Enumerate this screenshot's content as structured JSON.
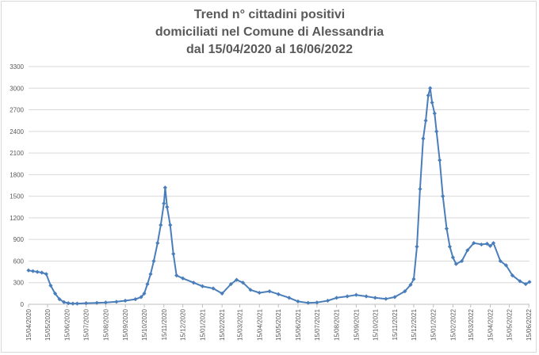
{
  "chart_data": {
    "type": "line",
    "title_lines": [
      "Trend n° cittadini positivi",
      "domiciliati nel Comune di Alessandria",
      "dal 15/04/2020 al 16/06/2022"
    ],
    "xlabel": "",
    "ylabel": "",
    "ylim": [
      0,
      3300
    ],
    "y_ticks": [
      0,
      300,
      600,
      900,
      1200,
      1500,
      1800,
      2100,
      2400,
      2700,
      3000,
      3300
    ],
    "x_tick_labels": [
      "15/04/2020",
      "15/05/2020",
      "15/06/2020",
      "15/07/2020",
      "15/08/2020",
      "15/09/2020",
      "15/10/2020",
      "15/11/2020",
      "15/12/2020",
      "15/01/2021",
      "15/02/2021",
      "15/03/2021",
      "15/04/2021",
      "15/05/2021",
      "15/06/2021",
      "15/07/2021",
      "15/08/2021",
      "15/09/2021",
      "15/10/2021",
      "15/11/2021",
      "15/12/2021",
      "15/01/2022",
      "15/02/2022",
      "15/03/2022",
      "15/04/2022",
      "15/05/2022",
      "15/06/2022"
    ],
    "x_start": "15/04/2020",
    "x_end": "16/06/2022",
    "grid": true,
    "legend": "none",
    "series_color": "#4a7ebb",
    "series": [
      {
        "x": [
          "15/04/2020",
          "22/04/2020",
          "29/04/2020",
          "06/05/2020",
          "13/05/2020",
          "20/05/2020",
          "27/05/2020",
          "03/06/2020",
          "10/06/2020",
          "17/06/2020",
          "24/06/2020",
          "01/07/2020",
          "15/07/2020",
          "01/08/2020",
          "15/08/2020",
          "01/09/2020",
          "15/09/2020",
          "01/10/2020",
          "10/10/2020",
          "15/10/2020",
          "20/10/2020",
          "25/10/2020",
          "30/10/2020",
          "05/11/2020",
          "10/11/2020",
          "15/11/2020",
          "17/11/2020",
          "20/11/2020",
          "25/11/2020",
          "30/11/2020",
          "05/12/2020",
          "15/12/2020",
          "01/01/2021",
          "15/01/2021",
          "01/02/2021",
          "15/02/2021",
          "01/03/2021",
          "10/03/2021",
          "20/03/2021",
          "01/04/2021",
          "15/04/2021",
          "01/05/2021",
          "15/05/2021",
          "01/06/2021",
          "15/06/2021",
          "01/07/2021",
          "15/07/2021",
          "01/08/2021",
          "15/08/2021",
          "01/09/2021",
          "15/09/2021",
          "01/10/2021",
          "15/10/2021",
          "01/11/2021",
          "15/11/2021",
          "01/12/2021",
          "10/12/2021",
          "15/12/2021",
          "20/12/2021",
          "25/12/2021",
          "30/12/2021",
          "03/01/2022",
          "07/01/2022",
          "10/01/2022",
          "13/01/2022",
          "17/01/2022",
          "20/01/2022",
          "25/01/2022",
          "30/01/2022",
          "05/02/2022",
          "10/02/2022",
          "15/02/2022",
          "20/02/2022",
          "01/03/2022",
          "10/03/2022",
          "20/03/2022",
          "01/04/2022",
          "10/04/2022",
          "15/04/2022",
          "20/04/2022",
          "01/05/2022",
          "10/05/2022",
          "20/05/2022",
          "01/06/2022",
          "10/06/2022",
          "16/06/2022"
        ],
        "values": [
          470,
          460,
          450,
          440,
          420,
          260,
          150,
          70,
          30,
          15,
          10,
          10,
          15,
          20,
          25,
          35,
          50,
          70,
          100,
          150,
          280,
          420,
          600,
          850,
          1100,
          1400,
          1620,
          1350,
          1100,
          700,
          400,
          360,
          300,
          250,
          220,
          150,
          280,
          340,
          300,
          200,
          160,
          180,
          140,
          90,
          40,
          20,
          25,
          50,
          90,
          110,
          130,
          110,
          90,
          75,
          100,
          180,
          270,
          350,
          800,
          1600,
          2300,
          2550,
          2900,
          3000,
          2800,
          2650,
          2400,
          2000,
          1500,
          1050,
          800,
          650,
          560,
          600,
          750,
          850,
          830,
          840,
          810,
          850,
          600,
          540,
          400,
          320,
          280,
          310
        ]
      }
    ]
  }
}
